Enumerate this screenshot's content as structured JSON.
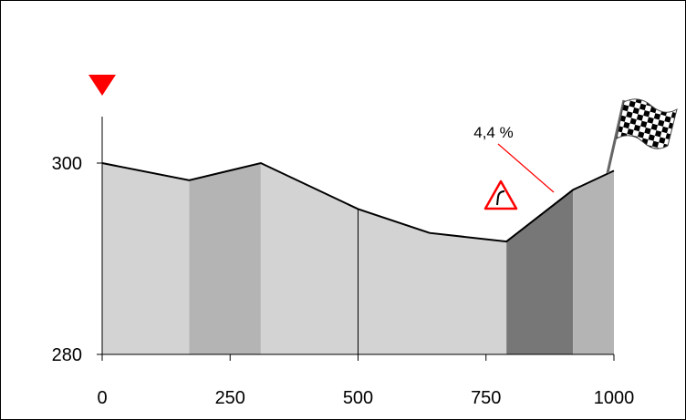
{
  "chart_data": {
    "type": "area",
    "title": "",
    "xlabel": "",
    "ylabel": "",
    "xlim": [
      0,
      1000
    ],
    "ylim": [
      280,
      300
    ],
    "x_ticks": [
      0,
      250,
      500,
      750,
      1000
    ],
    "y_ticks": [
      280,
      300
    ],
    "profile": [
      {
        "x": 0,
        "y": 300
      },
      {
        "x": 170,
        "y": 298.2
      },
      {
        "x": 310,
        "y": 300
      },
      {
        "x": 500,
        "y": 295.2
      },
      {
        "x": 640,
        "y": 292.7
      },
      {
        "x": 790,
        "y": 291.8
      },
      {
        "x": 920,
        "y": 297.2
      },
      {
        "x": 1000,
        "y": 299.2
      }
    ],
    "segments": [
      {
        "x_start": 0,
        "x_end": 170,
        "color": "#d3d3d3"
      },
      {
        "x_start": 170,
        "x_end": 310,
        "color": "#b4b4b4"
      },
      {
        "x_start": 310,
        "x_end": 500,
        "color": "#d3d3d3"
      },
      {
        "x_start": 500,
        "x_end": 790,
        "color": "#d3d3d3"
      },
      {
        "x_start": 790,
        "x_end": 920,
        "color": "#777777"
      },
      {
        "x_start": 920,
        "x_end": 1000,
        "color": "#b4b4b4"
      }
    ],
    "annotations": [
      {
        "text": "4,4 %"
      }
    ],
    "markers": {
      "start": "red-triangle-down",
      "finish": "checkered-flag",
      "warning": "red-curve-warning-sign"
    },
    "colors": {
      "outline": "#000000",
      "start_marker": "#ff0000",
      "warning": "#ff0000",
      "annotation_line": "#ff0000"
    }
  }
}
